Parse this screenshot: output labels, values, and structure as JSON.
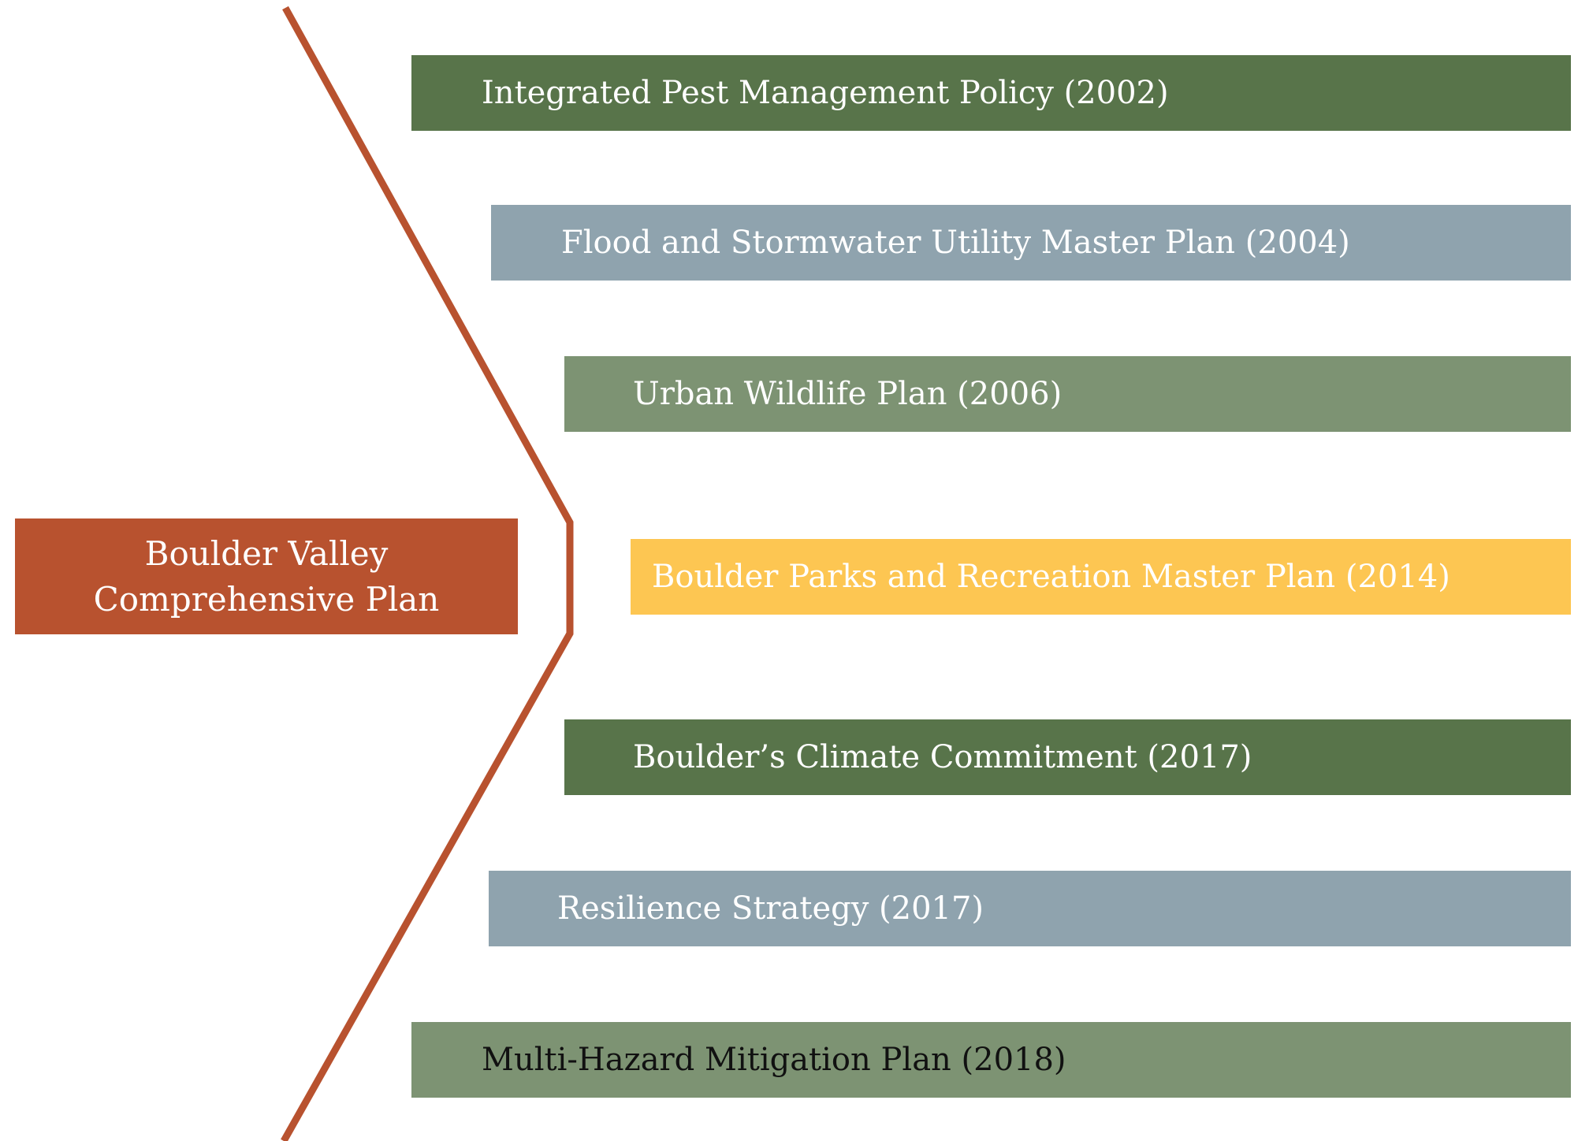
{
  "center": {
    "lines": [
      "Boulder Valley",
      "Comprehensive Plan"
    ]
  },
  "plans": [
    {
      "label": "Integrated Pest Management Policy (2002)"
    },
    {
      "label": "Flood and Stormwater Utility Master Plan (2004)"
    },
    {
      "label": "Urban Wildlife Plan (2006)"
    },
    {
      "label": "Boulder Parks and Recreation Master Plan (2014)"
    },
    {
      "label": "Boulder’s Climate Commitment (2017)"
    },
    {
      "label": "Resilience Strategy (2017)"
    },
    {
      "label": "Multi-Hazard Mitigation Plan (2018)"
    }
  ]
}
